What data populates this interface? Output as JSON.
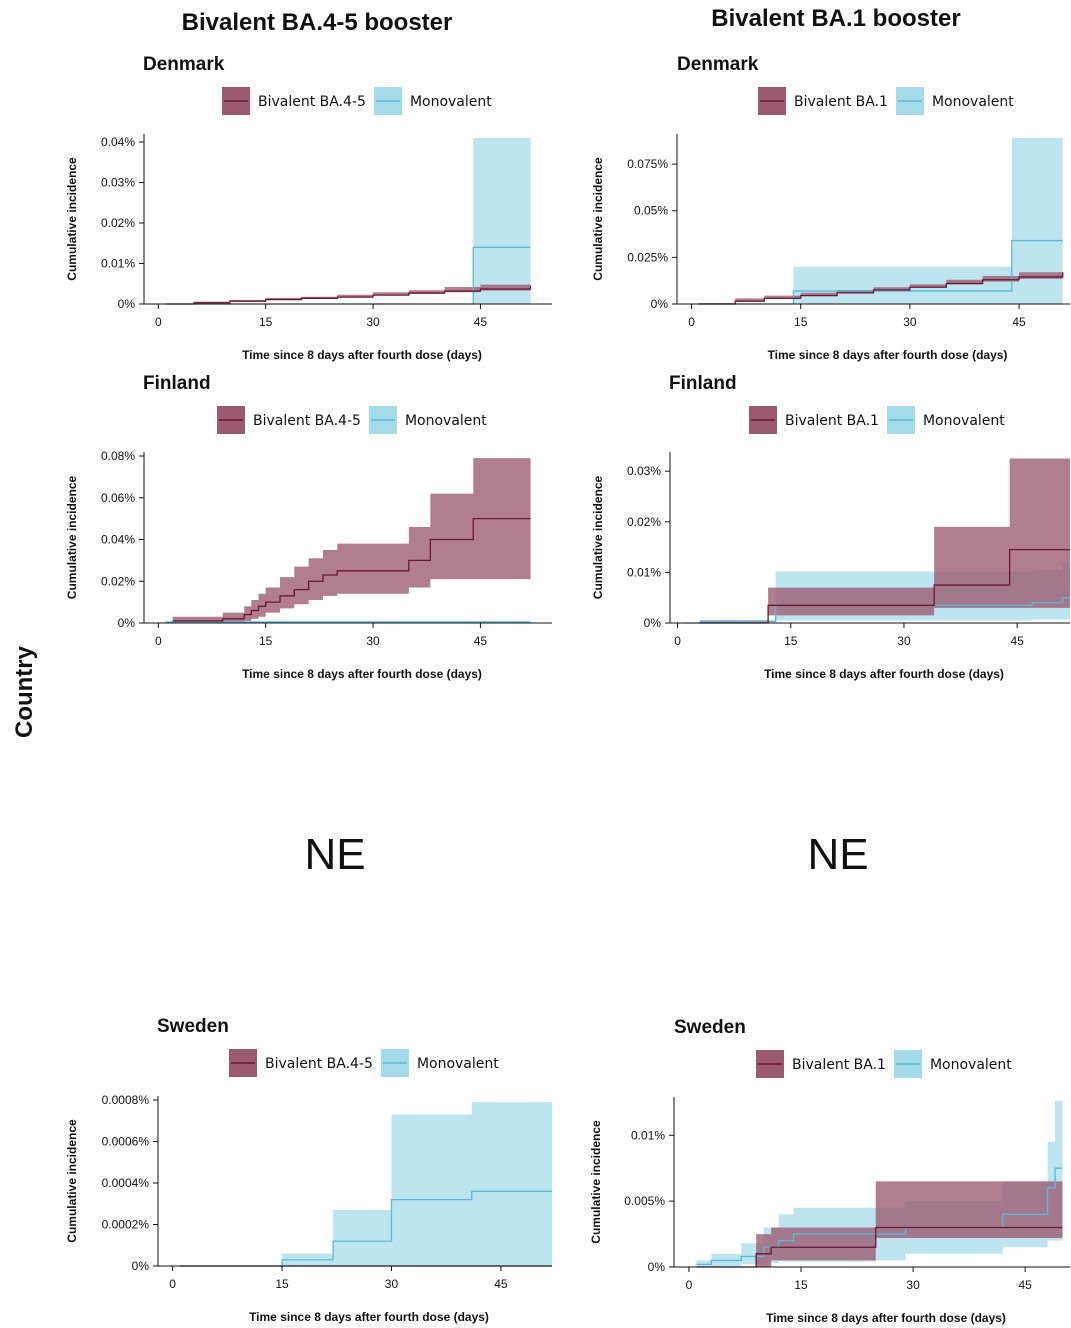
{
  "column_titles": [
    "Bivalent BA.4-5 booster",
    "Bivalent BA.1 booster"
  ],
  "row_label": "Country",
  "ne_labels": [
    "NE",
    "NE"
  ],
  "colors": {
    "bivalent_line": "#6b1730",
    "bivalent_fill": "#9b5a70",
    "monovalent_line": "#5ab9d6",
    "monovalent_fill": "#a4dbea"
  },
  "chart_data": [
    {
      "type": "line",
      "country": "Denmark",
      "xlabel": "Time since 8 days after fourth dose (days)",
      "ylabel": "Cumulative incidence",
      "xticks": [
        0,
        15,
        30,
        45
      ],
      "xlim": [
        -2,
        55
      ],
      "ylim": [
        0,
        0.041
      ],
      "yticks": [
        0,
        0.01,
        0.02,
        0.03,
        0.04
      ],
      "ytick_labels": [
        "0%",
        "0.01%",
        "0.02%",
        "0.03%",
        "0.04%"
      ],
      "series": [
        {
          "name": "Bivalent BA.4-5",
          "kind": "bivalent",
          "x": [
            1,
            5,
            10,
            15,
            20,
            25,
            30,
            35,
            40,
            45,
            52
          ],
          "y": [
            0,
            0.0003,
            0.0007,
            0.0011,
            0.0014,
            0.0017,
            0.0022,
            0.0027,
            0.0032,
            0.0037,
            0.0045
          ],
          "lower": [
            0,
            0.0001,
            0.0004,
            0.0008,
            0.0011,
            0.0013,
            0.0017,
            0.0021,
            0.0025,
            0.0029,
            0.0033
          ],
          "upper": [
            0,
            0.0006,
            0.001,
            0.0015,
            0.0018,
            0.0023,
            0.0029,
            0.0034,
            0.0042,
            0.0048,
            0.006
          ]
        },
        {
          "name": "Monovalent",
          "kind": "monovalent",
          "x": [
            1,
            44,
            52
          ],
          "y": [
            0,
            0.014,
            0.014
          ],
          "lower": [
            0,
            0,
            0
          ],
          "upper": [
            0,
            0.041,
            0.041
          ]
        }
      ]
    },
    {
      "type": "line",
      "country": "Denmark",
      "xlabel": "Time since 8 days after fourth dose (days)",
      "ylabel": "Cumulative incidence",
      "xticks": [
        0,
        15,
        30,
        45
      ],
      "xlim": [
        -2,
        52
      ],
      "ylim": [
        0,
        0.089
      ],
      "yticks": [
        0,
        0.025,
        0.05,
        0.075
      ],
      "ytick_labels": [
        "0%",
        "0.025%",
        "0.05%",
        "0.075%"
      ],
      "series": [
        {
          "name": "Bivalent BA.1",
          "kind": "bivalent",
          "x": [
            1,
            6,
            10,
            15,
            20,
            25,
            30,
            35,
            40,
            45,
            51
          ],
          "y": [
            0,
            0.0015,
            0.003,
            0.0045,
            0.006,
            0.0075,
            0.009,
            0.011,
            0.013,
            0.0145,
            0.017
          ],
          "lower": [
            0,
            0.0005,
            0.0015,
            0.003,
            0.0045,
            0.006,
            0.0075,
            0.009,
            0.0105,
            0.012,
            0.0135
          ],
          "upper": [
            0,
            0.003,
            0.0045,
            0.006,
            0.0075,
            0.009,
            0.0105,
            0.013,
            0.015,
            0.017,
            0.02
          ]
        },
        {
          "name": "Monovalent",
          "kind": "monovalent",
          "x": [
            1,
            14,
            44,
            51
          ],
          "y": [
            0,
            0.007,
            0.034,
            0.034
          ],
          "lower": [
            0,
            0,
            0,
            0
          ],
          "upper": [
            0,
            0.02,
            0.089,
            0.089
          ]
        }
      ]
    },
    {
      "type": "line",
      "country": "Finland",
      "xlabel": "Time since 8 days after fourth dose (days)",
      "ylabel": "Cumulative incidence",
      "xticks": [
        0,
        15,
        30,
        45
      ],
      "xlim": [
        -2,
        55
      ],
      "ylim": [
        0,
        0.08
      ],
      "yticks": [
        0,
        0.02,
        0.04,
        0.06,
        0.08
      ],
      "ytick_labels": [
        "0%",
        "0.02%",
        "0.04%",
        "0.06%",
        "0.08%"
      ],
      "series": [
        {
          "name": "Bivalent BA.4-5",
          "kind": "bivalent",
          "x": [
            2,
            9,
            12,
            13,
            14,
            15,
            17,
            19,
            21,
            23,
            25,
            35,
            38,
            44,
            52
          ],
          "y": [
            0.001,
            0.002,
            0.004,
            0.006,
            0.008,
            0.01,
            0.013,
            0.016,
            0.02,
            0.023,
            0.025,
            0.03,
            0.04,
            0.05,
            0.05
          ],
          "lower": [
            0,
            0,
            0.0005,
            0.001,
            0.002,
            0.003,
            0.005,
            0.007,
            0.009,
            0.011,
            0.013,
            0.014,
            0.017,
            0.021,
            0.021
          ],
          "upper": [
            0.003,
            0.005,
            0.008,
            0.011,
            0.014,
            0.017,
            0.022,
            0.027,
            0.031,
            0.035,
            0.038,
            0.046,
            0.062,
            0.079,
            0.079
          ]
        },
        {
          "name": "Monovalent",
          "kind": "monovalent",
          "x": [
            1,
            52
          ],
          "y": [
            0.0005,
            0.0005
          ],
          "lower": [
            0.0004,
            0.0004
          ],
          "upper": [
            0.0007,
            0.0007
          ]
        }
      ]
    },
    {
      "type": "line",
      "country": "Finland",
      "xlabel": "Time since 8 days after fourth dose (days)",
      "ylabel": "Cumulative incidence",
      "xticks": [
        0,
        15,
        30,
        45
      ],
      "xlim": [
        -1,
        52
      ],
      "ylim": [
        0,
        0.033
      ],
      "yticks": [
        0,
        0.01,
        0.02,
        0.03
      ],
      "ytick_labels": [
        "0%",
        "0.01%",
        "0.02%",
        "0.03%"
      ],
      "series": [
        {
          "name": "Bivalent BA.1",
          "kind": "bivalent",
          "x": [
            3,
            12,
            34,
            44,
            52
          ],
          "y": [
            0,
            0.0035,
            0.0075,
            0.0145,
            0.0145
          ],
          "lower": [
            0,
            0.0005,
            0.0015,
            0.003,
            0.003
          ],
          "upper": [
            0,
            0.007,
            0.019,
            0.0325,
            0.0325
          ]
        },
        {
          "name": "Monovalent",
          "kind": "monovalent",
          "x": [
            1,
            3,
            13,
            47,
            51,
            52
          ],
          "y": [
            0,
            0.0003,
            0.0035,
            0.004,
            0.005,
            0.005
          ],
          "lower": [
            0,
            0,
            0.0002,
            0.0005,
            0.0007,
            0.0007
          ],
          "upper": [
            0,
            0.0006,
            0.0102,
            0.0105,
            0.012,
            0.012
          ]
        }
      ]
    },
    {
      "type": "line",
      "country": "Sweden",
      "xlabel": "Time since 8 days after fourth dose (days)",
      "ylabel": "Cumulative incidence",
      "xticks": [
        0,
        15,
        30,
        45
      ],
      "xlim": [
        -2,
        52
      ],
      "ylim": [
        0,
        0.0008
      ],
      "yticks": [
        0,
        0.0002,
        0.0004,
        0.0006,
        0.0008
      ],
      "ytick_labels": [
        "0%",
        "0.0002%",
        "0.0004%",
        "0.0006%",
        "0.0008%"
      ],
      "series": [
        {
          "name": "Bivalent BA.4-5",
          "kind": "bivalent",
          "x": [
            1,
            52
          ],
          "y": [
            0,
            0
          ],
          "lower": [
            0,
            0
          ],
          "upper": [
            0,
            0
          ]
        },
        {
          "name": "Monovalent",
          "kind": "monovalent",
          "x": [
            1,
            15,
            22,
            30,
            41,
            52
          ],
          "y": [
            0,
            3e-05,
            0.00012,
            0.00032,
            0.00036,
            0.00036
          ],
          "lower": [
            0,
            0,
            0,
            0,
            0,
            0
          ],
          "upper": [
            0,
            6e-05,
            0.00027,
            0.00073,
            0.00079,
            0.00079
          ]
        }
      ]
    },
    {
      "type": "line",
      "country": "Sweden",
      "xlabel": "Time since 8 days after fourth dose (days)",
      "ylabel": "Cumulative incidence",
      "xticks": [
        0,
        15,
        30,
        45
      ],
      "xlim": [
        -2,
        51
      ],
      "ylim": [
        0,
        0.0126
      ],
      "yticks": [
        0,
        0.005,
        0.01
      ],
      "ytick_labels": [
        "0%",
        "0.005%",
        "0.01%"
      ],
      "series": [
        {
          "name": "Bivalent BA.1",
          "kind": "bivalent",
          "x": [
            1,
            9,
            11,
            25,
            50
          ],
          "y": [
            0,
            0.001,
            0.0015,
            0.003,
            0.003
          ],
          "lower": [
            0,
            0,
            0,
            0.0005,
            0.0022
          ],
          "upper": [
            0,
            0.0025,
            0.003,
            0.0065,
            0.0065
          ]
        },
        {
          "name": "Monovalent",
          "kind": "monovalent",
          "x": [
            1,
            3,
            7,
            10,
            12,
            14,
            25,
            29,
            42,
            48,
            49,
            50
          ],
          "y": [
            0.0002,
            0.0005,
            0.0008,
            0.0015,
            0.002,
            0.0025,
            0.0025,
            0.003,
            0.004,
            0.006,
            0.0075,
            0.0075
          ],
          "lower": [
            0,
            0,
            0,
            0.0002,
            0.0003,
            0.0004,
            0.0004,
            0.0005,
            0.001,
            0.0015,
            0.002,
            0.002
          ],
          "upper": [
            0.0005,
            0.001,
            0.0018,
            0.003,
            0.004,
            0.0045,
            0.0045,
            0.005,
            0.0065,
            0.0095,
            0.0126,
            0.0126
          ]
        }
      ]
    }
  ]
}
